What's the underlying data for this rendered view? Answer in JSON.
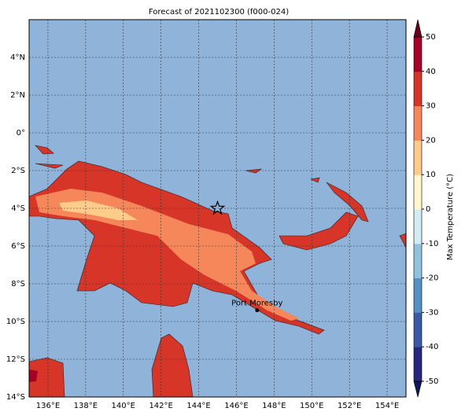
{
  "title": "Forecast of 2021102300 (f000-024)",
  "map": {
    "lonlim": [
      135,
      155
    ],
    "latlim": [
      -14,
      6
    ],
    "lon_ticks": [
      {
        "value": 136,
        "label": "136°E"
      },
      {
        "value": 138,
        "label": "138°E"
      },
      {
        "value": 140,
        "label": "140°E"
      },
      {
        "value": 142,
        "label": "142°E"
      },
      {
        "value": 144,
        "label": "144°E"
      },
      {
        "value": 146,
        "label": "146°E"
      },
      {
        "value": 148,
        "label": "148°E"
      },
      {
        "value": 150,
        "label": "150°E"
      },
      {
        "value": 152,
        "label": "152°E"
      },
      {
        "value": 154,
        "label": "154°E"
      }
    ],
    "lat_ticks": [
      {
        "value": 4,
        "label": "4°N"
      },
      {
        "value": 2,
        "label": "2°N"
      },
      {
        "value": 0,
        "label": "0°"
      },
      {
        "value": -2,
        "label": "2°S"
      },
      {
        "value": -4,
        "label": "4°S"
      },
      {
        "value": -6,
        "label": "6°S"
      },
      {
        "value": -8,
        "label": "8°S"
      },
      {
        "value": -10,
        "label": "10°S"
      },
      {
        "value": -12,
        "label": "12°S"
      },
      {
        "value": -14,
        "label": "14°S"
      }
    ],
    "ocean_color": "#8fb3d9",
    "star": {
      "lon": 145.0,
      "lat": -4.0
    },
    "city": {
      "name": "Port Moresby",
      "lon": 147.1,
      "lat": -9.4
    }
  },
  "colorbar": {
    "label": "Max Temperature (°C)",
    "lim": [
      -50,
      50
    ],
    "ticks": [
      -50,
      -40,
      -30,
      -20,
      -10,
      0,
      10,
      20,
      30,
      40,
      50
    ],
    "colors": [
      "#26287f",
      "#3c59a5",
      "#5490c2",
      "#92c3de",
      "#d2ecf3",
      "#fff8cc",
      "#fdcc8a",
      "#f5875b",
      "#d73527",
      "#a50026"
    ],
    "under_color": "#14145a",
    "over_color": "#6b001c"
  }
}
